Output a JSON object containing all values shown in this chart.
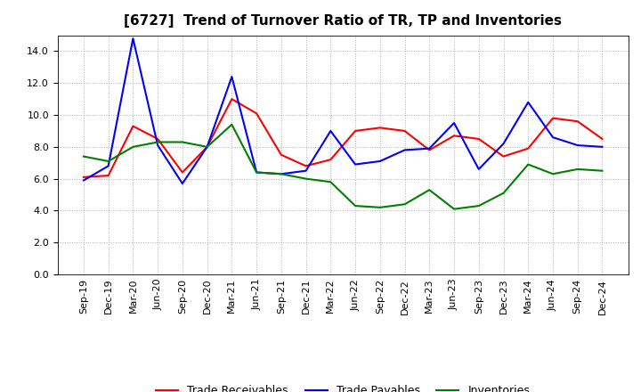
{
  "title": "[6727]  Trend of Turnover Ratio of TR, TP and Inventories",
  "x_labels": [
    "Sep-19",
    "Dec-19",
    "Mar-20",
    "Jun-20",
    "Sep-20",
    "Dec-20",
    "Mar-21",
    "Jun-21",
    "Sep-21",
    "Dec-21",
    "Mar-22",
    "Jun-22",
    "Sep-22",
    "Dec-22",
    "Mar-23",
    "Jun-23",
    "Sep-23",
    "Dec-23",
    "Mar-24",
    "Jun-24",
    "Sep-24",
    "Dec-24"
  ],
  "trade_receivables": [
    6.1,
    6.2,
    9.3,
    8.5,
    6.4,
    8.0,
    11.0,
    10.1,
    7.5,
    6.8,
    7.2,
    9.0,
    9.2,
    9.0,
    7.8,
    8.7,
    8.5,
    7.4,
    7.9,
    9.8,
    9.6,
    8.5
  ],
  "trade_payables": [
    5.9,
    6.8,
    14.8,
    8.1,
    5.7,
    8.0,
    12.4,
    6.4,
    6.3,
    6.5,
    9.0,
    6.9,
    7.1,
    7.8,
    7.9,
    9.5,
    6.6,
    8.2,
    10.8,
    8.6,
    8.1,
    8.0
  ],
  "inventories": [
    7.4,
    7.1,
    8.0,
    8.3,
    8.3,
    8.0,
    9.4,
    6.4,
    6.3,
    6.0,
    5.8,
    4.3,
    4.2,
    4.4,
    5.3,
    4.1,
    4.3,
    5.1,
    6.9,
    6.3,
    6.6,
    6.5
  ],
  "ylim": [
    0,
    15.0
  ],
  "yticks": [
    0.0,
    2.0,
    4.0,
    6.0,
    8.0,
    10.0,
    12.0,
    14.0
  ],
  "color_tr": "#ff0000",
  "color_tp": "#0000ff",
  "color_inv": "#008000",
  "background_color": "#ffffff",
  "grid_color": "#b0b0b0",
  "title_fontsize": 11,
  "axis_fontsize": 8,
  "legend_fontsize": 9
}
